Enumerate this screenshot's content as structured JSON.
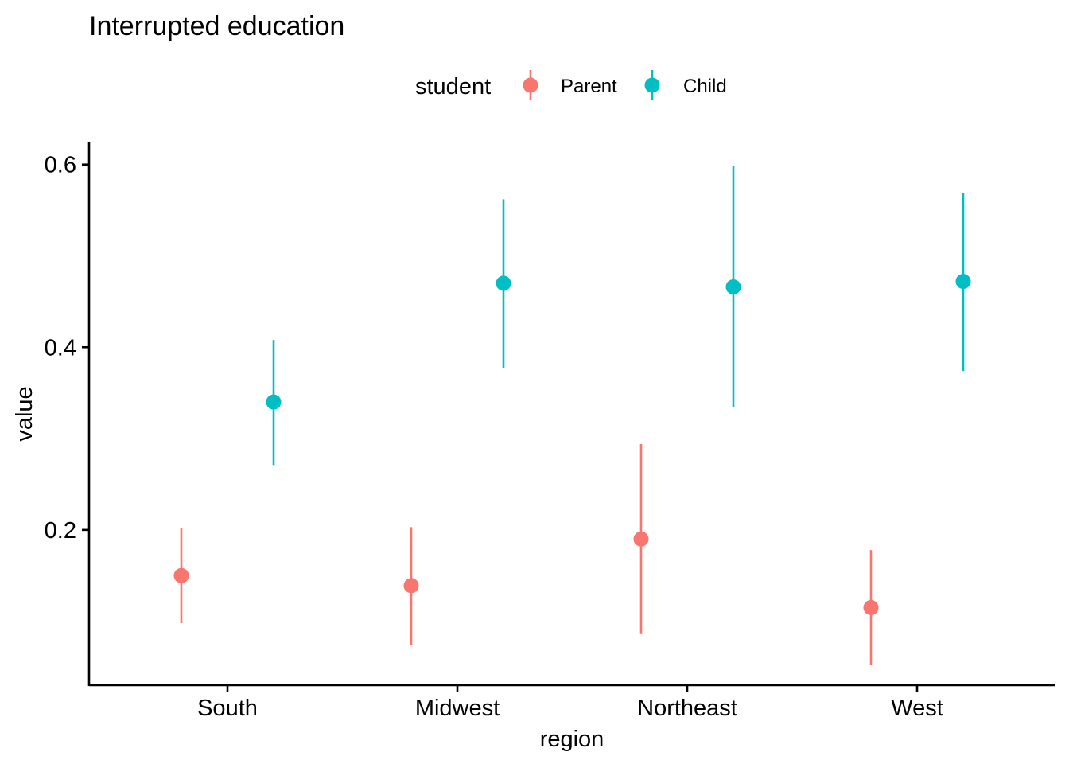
{
  "chart_data": {
    "type": "pointrange",
    "title": "Interrupted education",
    "xlabel": "region",
    "ylabel": "value",
    "categories": [
      "South",
      "Midwest",
      "Northeast",
      "West"
    ],
    "y_ticks": [
      "0.2",
      "0.4",
      "0.6"
    ],
    "ylim": [
      0.03,
      0.625
    ],
    "legend": {
      "title": "student",
      "position": "top",
      "entries": [
        "Parent",
        "Child"
      ]
    },
    "series": [
      {
        "name": "Parent",
        "color": "#F8766D",
        "values": [
          0.15,
          0.139,
          0.19,
          0.115
        ],
        "lower": [
          0.098,
          0.074,
          0.086,
          0.052
        ],
        "upper": [
          0.202,
          0.203,
          0.294,
          0.178
        ]
      },
      {
        "name": "Child",
        "color": "#00BFC4",
        "values": [
          0.34,
          0.47,
          0.466,
          0.472
        ],
        "lower": [
          0.271,
          0.377,
          0.334,
          0.374
        ],
        "upper": [
          0.408,
          0.562,
          0.598,
          0.569
        ]
      }
    ]
  }
}
